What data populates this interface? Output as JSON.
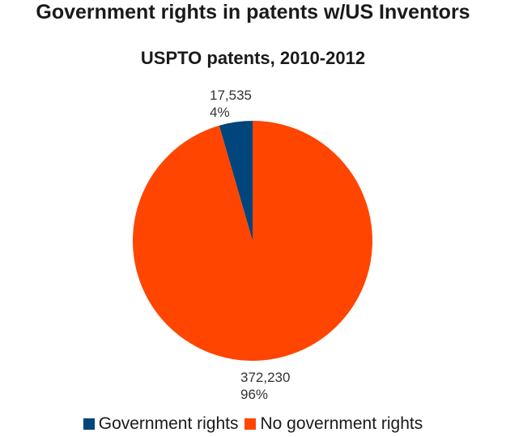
{
  "chart_data": {
    "type": "pie",
    "title": "Government rights in patents w/US Inventors",
    "subtitle": "USPTO patents, 2010-2012",
    "categories": [
      "Government rights",
      "No government rights"
    ],
    "values": [
      17535,
      372230
    ],
    "value_labels": [
      "17,535",
      "372,230"
    ],
    "percent_labels": [
      "4%",
      "96%"
    ],
    "colors": [
      "#00457c",
      "#ff4500"
    ],
    "legend_position": "bottom"
  }
}
